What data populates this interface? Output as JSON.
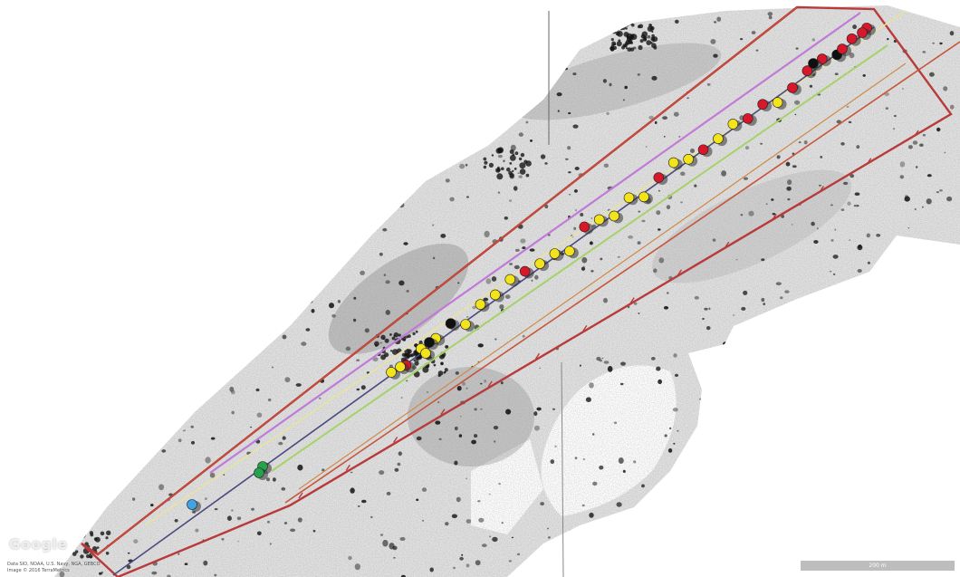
{
  "map": {
    "watermark": "Google",
    "credit_line_1": "Data SIO, NOAA, U.S. Navy, NGA, GEBCO",
    "credit_line_2": "Image © 2016 TerraMetrics",
    "scale_label": "200 m"
  },
  "colors": {
    "outer_boundary": "#b83a3a",
    "inner_boundary": "#c7553b",
    "centerline": "#4a4a80",
    "purple_track": "#c07ad8",
    "green_track": "#a5d36a",
    "yellow_track": "#e8e3a0",
    "target_yellow": "#f2e31b",
    "target_red": "#d8172b",
    "target_black": "#101010",
    "target_blue": "#3fa3e6",
    "target_green": "#24a34a",
    "seabed_light": "#e4e4e4"
  },
  "legend_icons": [
    "target-yellow-icon",
    "target-red-icon",
    "target-black-icon",
    "target-blue-icon",
    "target-green-icon"
  ]
}
